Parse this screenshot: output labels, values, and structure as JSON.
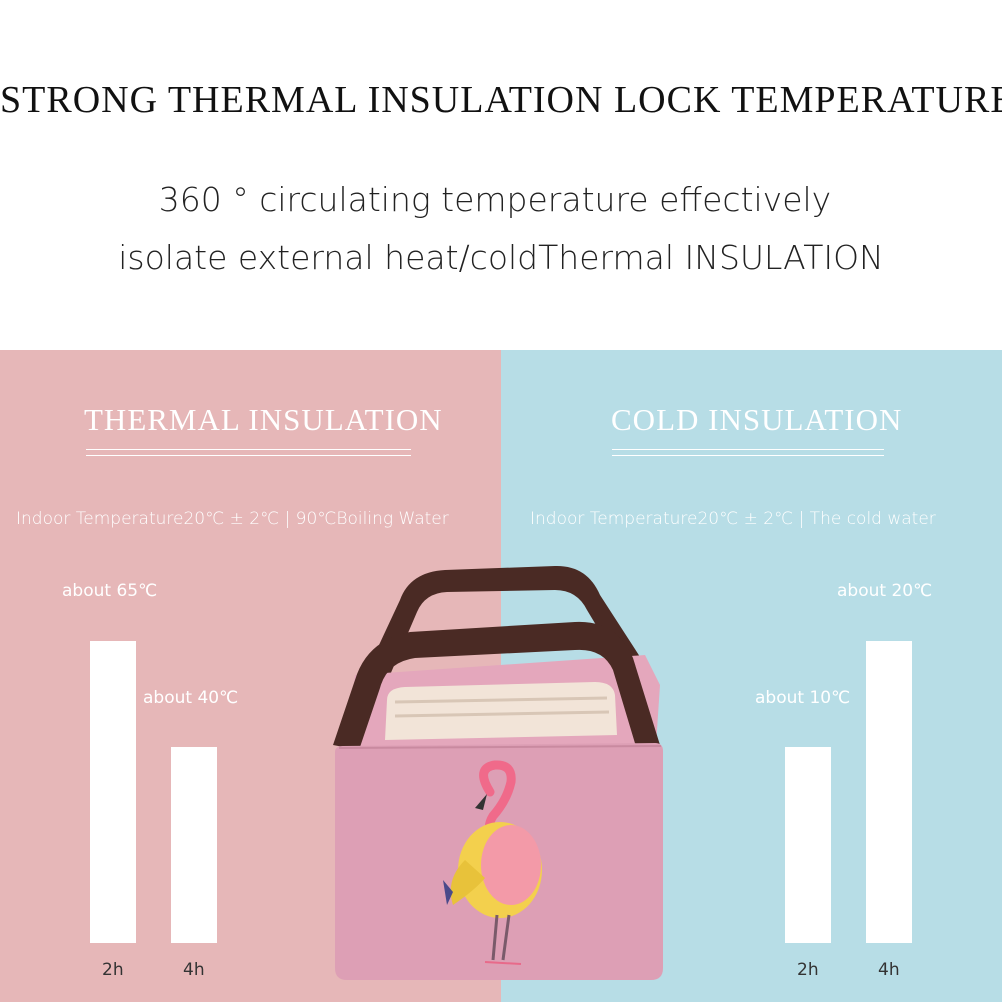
{
  "headline": "STRONG THERMAL INSULATION LOCK TEMPERATURE.",
  "subline_1": "360 ° circulating temperature effectively",
  "subline_2": "isolate external heat/coldThermal INSULATION",
  "thermal": {
    "title": "THERMAL INSULATION",
    "condition": "Indoor Temperature20℃ ± 2℃ | 90℃Boiling Water",
    "bars": [
      {
        "time": "2h",
        "label": "about 65℃",
        "value": 65
      },
      {
        "time": "4h",
        "label": "about 40℃",
        "value": 40
      }
    ],
    "panel_color": "#e6b7b8"
  },
  "cold": {
    "title": "COLD INSULATION",
    "condition": "Indoor Temperature20℃ ± 2℃ | The cold water",
    "bars": [
      {
        "time": "2h",
        "label": "about 10℃",
        "value": 10
      },
      {
        "time": "4h",
        "label": "about 20℃",
        "value": 20
      }
    ],
    "panel_color": "#b7dde6"
  },
  "bag_colors": {
    "body": "#dd9fb5",
    "handle": "#4a2a24"
  }
}
